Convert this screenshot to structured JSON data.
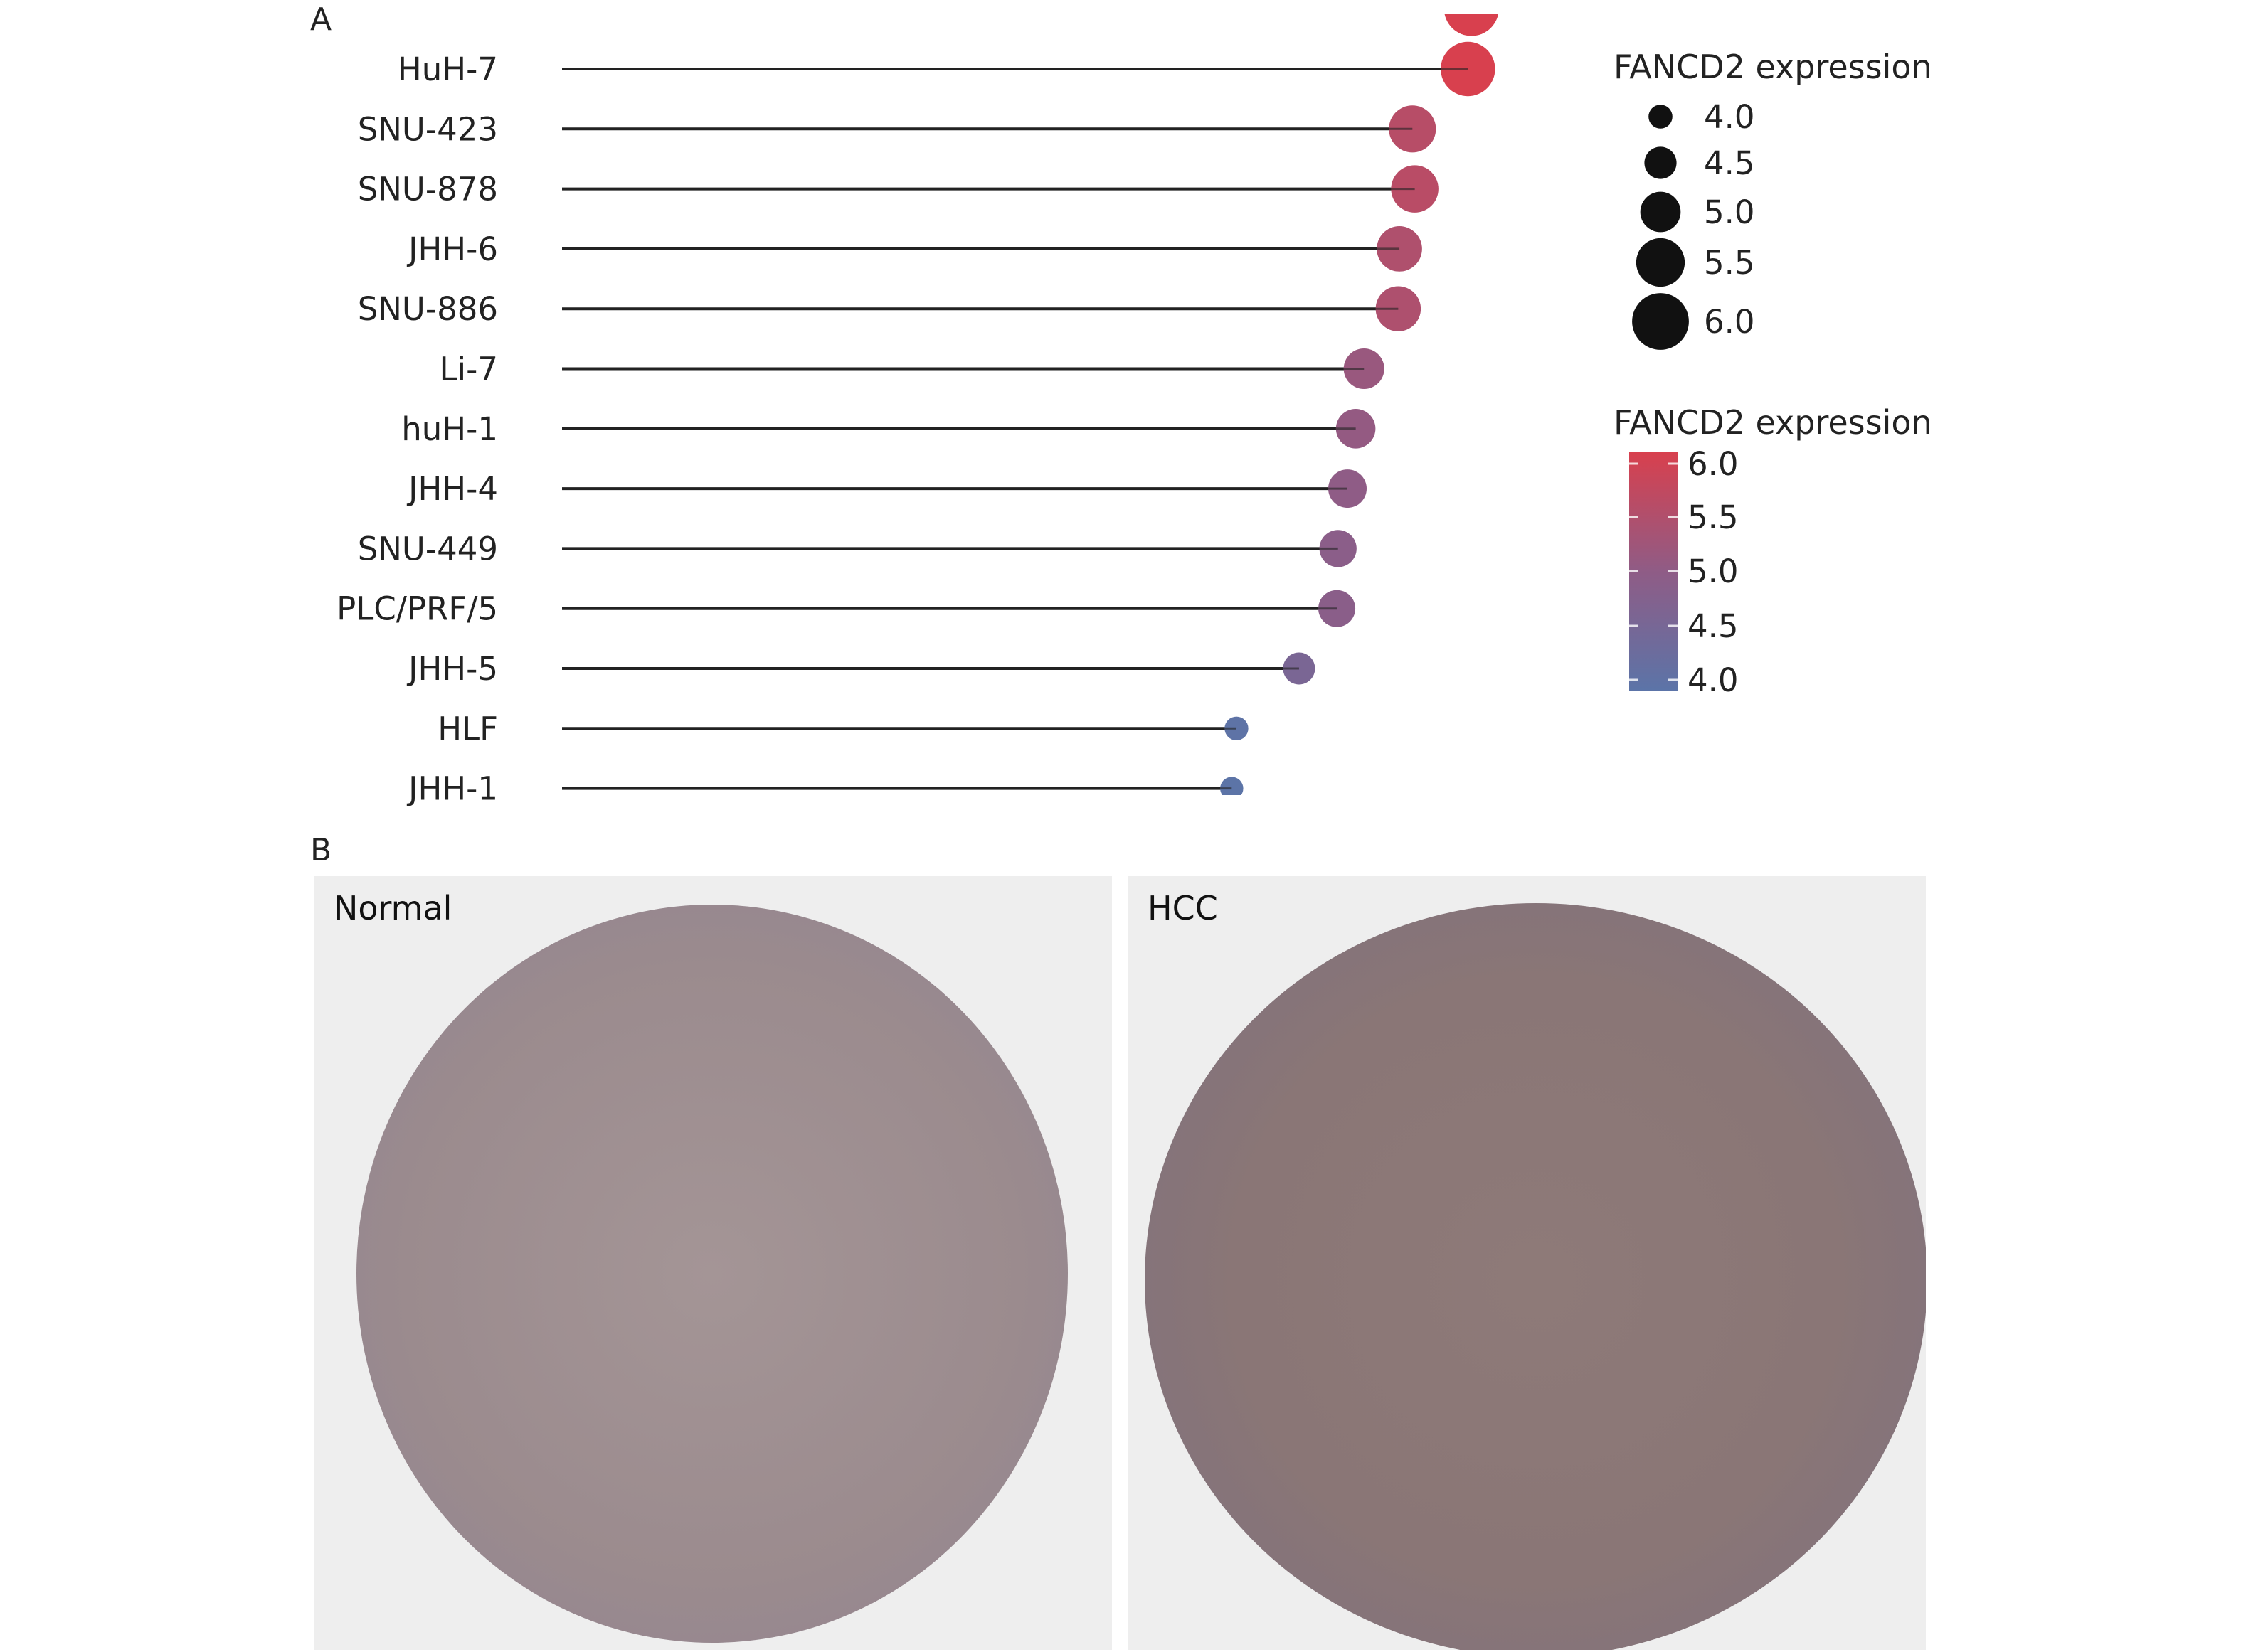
{
  "panel_a": {
    "letter": "A",
    "chart_data": {
      "type": "lollipop",
      "categories": [
        "HuH-7",
        "SNU-423",
        "SNU-878",
        "JHH-6",
        "SNU-886",
        "Li-7",
        "huH-1",
        "JHH-4",
        "SNU-449",
        "PLC/PRF/5",
        "JHH-5",
        "HLF",
        "JHH-1"
      ],
      "values": [
        6.02,
        5.55,
        5.57,
        5.44,
        5.43,
        5.14,
        5.07,
        5.0,
        4.92,
        4.91,
        4.59,
        4.06,
        4.02
      ],
      "partial_top_value": 6.05,
      "size_legend": {
        "title": "FANCD2 expression",
        "labels": [
          "4.0",
          "4.5",
          "5.0",
          "5.5",
          "6.0"
        ],
        "values": [
          4.0,
          4.5,
          5.0,
          5.5,
          6.0
        ]
      },
      "color_legend": {
        "title": "FANCD2 expression",
        "labels": [
          "6.0",
          "5.5",
          "5.0",
          "4.5",
          "4.0"
        ],
        "low_color": "#5b74a8",
        "high_color": "#d8404e"
      },
      "xlabel": "",
      "ylabel": "",
      "grid": false
    }
  },
  "panel_b": {
    "letter": "B",
    "images": [
      {
        "caption": "Normal",
        "stain": "#9a8a8e"
      },
      {
        "caption": "HCC",
        "stain": "#8c7876"
      }
    ]
  }
}
